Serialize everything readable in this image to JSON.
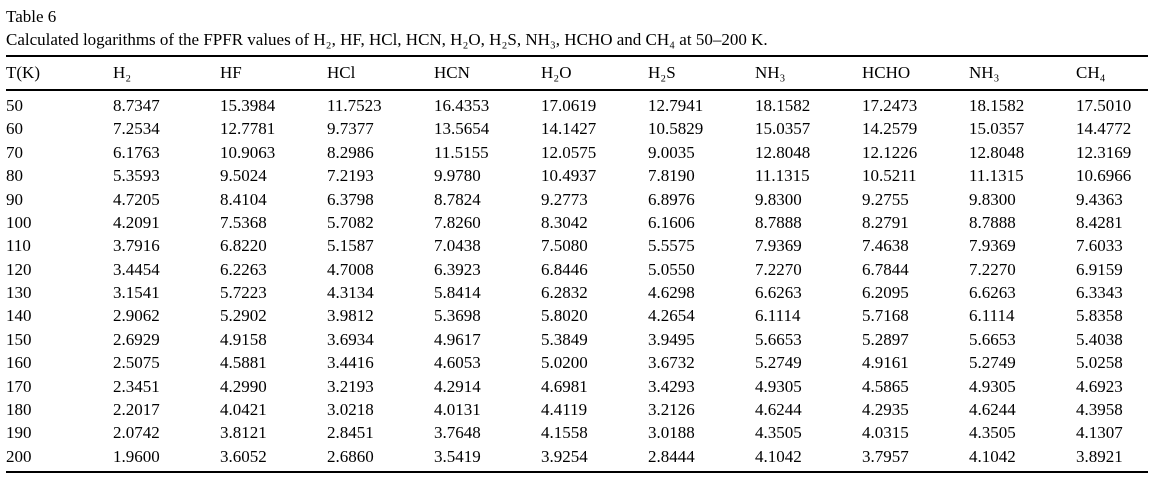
{
  "table": {
    "label": "Table 6",
    "caption": "Calculated logarithms of the FPFR values of H₂, HF, HCl, HCN, H₂O, H₂S, NH₃, HCHO and CH₄ at 50–200 K.",
    "columns": [
      "T(K)",
      "H₂",
      "HF",
      "HCl",
      "HCN",
      "H₂O",
      "H₂S",
      "NH₃",
      "HCHO",
      "NH₃",
      "CH₄"
    ],
    "rows": [
      [
        "50",
        "8.7347",
        "15.3984",
        "11.7523",
        "16.4353",
        "17.0619",
        "12.7941",
        "18.1582",
        "17.2473",
        "18.1582",
        "17.5010"
      ],
      [
        "60",
        "7.2534",
        "12.7781",
        "9.7377",
        "13.5654",
        "14.1427",
        "10.5829",
        "15.0357",
        "14.2579",
        "15.0357",
        "14.4772"
      ],
      [
        "70",
        "6.1763",
        "10.9063",
        "8.2986",
        "11.5155",
        "12.0575",
        "9.0035",
        "12.8048",
        "12.1226",
        "12.8048",
        "12.3169"
      ],
      [
        "80",
        "5.3593",
        "9.5024",
        "7.2193",
        "9.9780",
        "10.4937",
        "7.8190",
        "11.1315",
        "10.5211",
        "11.1315",
        "10.6966"
      ],
      [
        "90",
        "4.7205",
        "8.4104",
        "6.3798",
        "8.7824",
        "9.2773",
        "6.8976",
        "9.8300",
        "9.2755",
        "9.8300",
        "9.4363"
      ],
      [
        "100",
        "4.2091",
        "7.5368",
        "5.7082",
        "7.8260",
        "8.3042",
        "6.1606",
        "8.7888",
        "8.2791",
        "8.7888",
        "8.4281"
      ],
      [
        "110",
        "3.7916",
        "6.8220",
        "5.1587",
        "7.0438",
        "7.5080",
        "5.5575",
        "7.9369",
        "7.4638",
        "7.9369",
        "7.6033"
      ],
      [
        "120",
        "3.4454",
        "6.2263",
        "4.7008",
        "6.3923",
        "6.8446",
        "5.0550",
        "7.2270",
        "6.7844",
        "7.2270",
        "6.9159"
      ],
      [
        "130",
        "3.1541",
        "5.7223",
        "4.3134",
        "5.8414",
        "6.2832",
        "4.6298",
        "6.6263",
        "6.2095",
        "6.6263",
        "6.3343"
      ],
      [
        "140",
        "2.9062",
        "5.2902",
        "3.9812",
        "5.3698",
        "5.8020",
        "4.2654",
        "6.1114",
        "5.7168",
        "6.1114",
        "5.8358"
      ],
      [
        "150",
        "2.6929",
        "4.9158",
        "3.6934",
        "4.9617",
        "5.3849",
        "3.9495",
        "5.6653",
        "5.2897",
        "5.6653",
        "5.4038"
      ],
      [
        "160",
        "2.5075",
        "4.5881",
        "3.4416",
        "4.6053",
        "5.0200",
        "3.6732",
        "5.2749",
        "4.9161",
        "5.2749",
        "5.0258"
      ],
      [
        "170",
        "2.3451",
        "4.2990",
        "3.2193",
        "4.2914",
        "4.6981",
        "3.4293",
        "4.9305",
        "4.5865",
        "4.9305",
        "4.6923"
      ],
      [
        "180",
        "2.2017",
        "4.0421",
        "3.0218",
        "4.0131",
        "4.4119",
        "3.2126",
        "4.6244",
        "4.2935",
        "4.6244",
        "4.3958"
      ],
      [
        "190",
        "2.0742",
        "3.8121",
        "2.8451",
        "3.7648",
        "4.1558",
        "3.0188",
        "4.3505",
        "4.0315",
        "4.3505",
        "4.1307"
      ],
      [
        "200",
        "1.9600",
        "3.6052",
        "2.6860",
        "3.5419",
        "3.9254",
        "2.8444",
        "4.1042",
        "3.7957",
        "4.1042",
        "3.8921"
      ]
    ]
  }
}
